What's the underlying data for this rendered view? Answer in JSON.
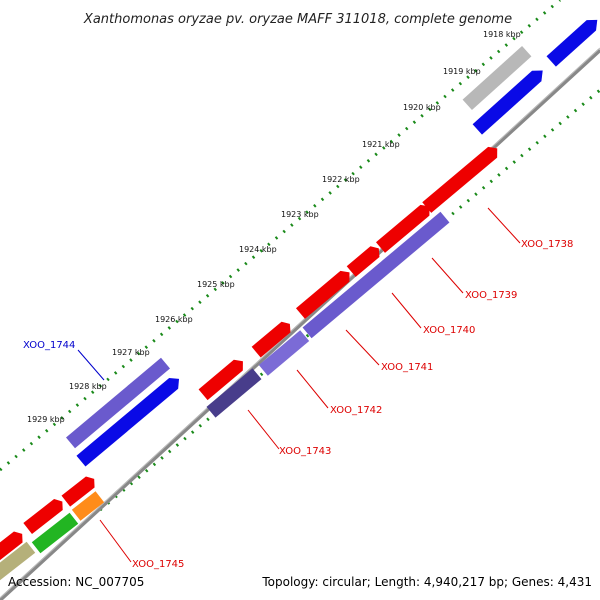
{
  "title": "Xanthomonas oryzae pv. oryzae MAFF 311018, complete genome",
  "accession": "Accession: NC_007705",
  "summary": "Topology: circular; Length: 4,940,217 bp; Genes: 4,431",
  "colors": {
    "backbone": "#777777",
    "scale": "#1a8a1a",
    "red": "#ee0000",
    "blue": "#0a0ae6",
    "violet": "#6a5acd",
    "darkviolet": "#483d8b",
    "grey": "#b8b8b8",
    "green": "#22b522",
    "orange": "#ff8c1a",
    "olive": "#b5b07a",
    "label_red": "#dd0000",
    "label_blue": "#0000cc"
  },
  "scale_ticks": [
    "1918 kbp",
    "1919 kbp",
    "1920 kbp",
    "1921 kbp",
    "1922 kbp",
    "1923 kbp",
    "1924 kbp",
    "1925 kbp",
    "1926 kbp",
    "1927 kbp",
    "1928 kbp",
    "1929 kbp"
  ],
  "gene_labels": [
    {
      "name": "XOO_1738",
      "color": "red"
    },
    {
      "name": "XOO_1739",
      "color": "red"
    },
    {
      "name": "XOO_1740",
      "color": "red"
    },
    {
      "name": "XOO_1741",
      "color": "red"
    },
    {
      "name": "XOO_1742",
      "color": "red"
    },
    {
      "name": "XOO_1743",
      "color": "red"
    },
    {
      "name": "XOO_1744",
      "color": "blue"
    },
    {
      "name": "XOO_1745",
      "color": "red"
    }
  ]
}
